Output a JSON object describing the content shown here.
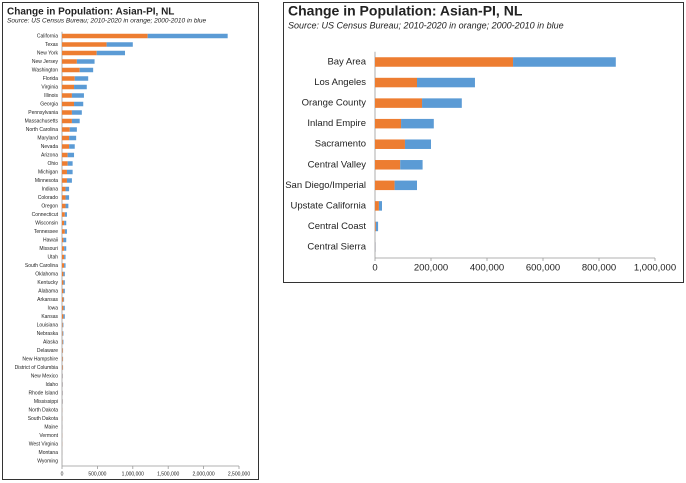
{
  "chart_data": [
    {
      "type": "bar",
      "orientation": "horizontal",
      "stacked": true,
      "title": "Change in Population:  Asian-PI, NL",
      "subtitle": "Source:  US Census Bureau; 2010-2020 in orange; 2000-2010 in blue",
      "categories": [
        "California",
        "Texas",
        "New York",
        "New Jersey",
        "Washington",
        "Florida",
        "Virginia",
        "Illinois",
        "Georgia",
        "Pennsylvania",
        "Massachusetts",
        "North Carolina",
        "Maryland",
        "Nevada",
        "Arizona",
        "Ohio",
        "Michigan",
        "Minnesota",
        "Indiana",
        "Colorado",
        "Oregon",
        "Connecticut",
        "Wisconsin",
        "Tennessee",
        "Hawaii",
        "Missouri",
        "Utah",
        "South Carolina",
        "Oklahoma",
        "Kentucky",
        "Alabama",
        "Arkansas",
        "Iowa",
        "Kansas",
        "Louisiana",
        "Nebraska",
        "Alaska",
        "Delaware",
        "New Hampshire",
        "District of Columbia",
        "New Mexico",
        "Idaho",
        "Rhode Island",
        "Mississippi",
        "North Dakota",
        "South Dakota",
        "Maine",
        "Vermont",
        "West Virginia",
        "Montana",
        "Wyoming"
      ],
      "series": [
        {
          "color": "#ed7d31",
          "values": [
            1210000,
            630000,
            490000,
            210000,
            250000,
            180000,
            170000,
            140000,
            170000,
            140000,
            140000,
            110000,
            100000,
            100000,
            80000,
            80000,
            70000,
            70000,
            50000,
            50000,
            50000,
            40000,
            30000,
            40000,
            20000,
            30000,
            30000,
            30000,
            20000,
            20000,
            20000,
            20000,
            20000,
            20000,
            10000,
            10000,
            10000,
            10000,
            10000,
            10000,
            5000,
            5000,
            5000,
            5000,
            3000,
            3000,
            2000,
            2000,
            2000,
            1000,
            1000
          ]
        },
        {
          "color": "#5b9bd5",
          "values": [
            1130000,
            370000,
            400000,
            250000,
            190000,
            190000,
            180000,
            170000,
            130000,
            140000,
            110000,
            100000,
            100000,
            80000,
            90000,
            70000,
            80000,
            70000,
            50000,
            50000,
            40000,
            30000,
            30000,
            30000,
            40000,
            30000,
            20000,
            20000,
            20000,
            20000,
            20000,
            10000,
            20000,
            20000,
            10000,
            10000,
            10000,
            5000,
            5000,
            5000,
            5000,
            5000,
            5000,
            5000,
            2000,
            2000,
            2000,
            1000,
            1000,
            1000,
            1000
          ]
        }
      ],
      "xlim": [
        0,
        2500000
      ],
      "xticks": [
        0,
        {
          "value": 500000,
          "label": "500,000"
        },
        {
          "value": 1000000,
          "label": "1,000,000"
        },
        {
          "value": 1500000,
          "label": "1,500,000"
        },
        {
          "value": 2000000,
          "label": "2,000,000"
        },
        {
          "value": 2500000,
          "label": "2,500,000"
        }
      ],
      "grid": false
    },
    {
      "type": "bar",
      "orientation": "horizontal",
      "stacked": true,
      "title": "Change in Population:  Asian-PI, NL",
      "subtitle": "Source:  US Census Bureau; 2010-2020 in orange; 2000-2010 in blue",
      "categories": [
        "Bay Area",
        "Los Angeles",
        "Orange County",
        "Inland Empire",
        "Sacramento",
        "Central Valley",
        "San Diego/Imperial",
        "Upstate California",
        "Central Coast",
        "Central Sierra"
      ],
      "series": [
        {
          "color": "#ed7d31",
          "values": [
            493000,
            150000,
            168000,
            93000,
            107000,
            90000,
            70000,
            14000,
            3000,
            1000
          ]
        },
        {
          "color": "#5b9bd5",
          "values": [
            367000,
            207000,
            142000,
            117000,
            93000,
            80000,
            80000,
            11000,
            8000,
            1000
          ]
        }
      ],
      "xlim": [
        0,
        1000000
      ],
      "xticks": [
        0,
        {
          "value": 200000,
          "label": "200,000"
        },
        {
          "value": 400000,
          "label": "400,000"
        },
        {
          "value": 600000,
          "label": "600,000"
        },
        {
          "value": 800000,
          "label": "800,000"
        },
        {
          "value": 1000000,
          "label": "1,000,000"
        }
      ],
      "grid": false
    }
  ]
}
